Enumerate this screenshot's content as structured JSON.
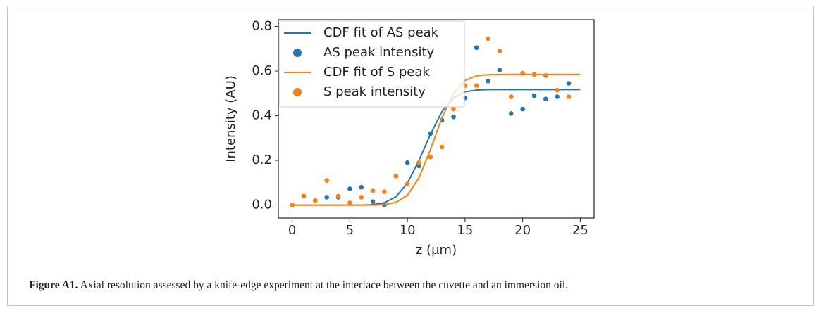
{
  "chart_data": {
    "type": "scatter",
    "xlabel": "z (μm)",
    "ylabel": "Intensity (AU)",
    "xlim": [
      -1.2,
      26.2
    ],
    "ylim": [
      -0.058,
      0.83
    ],
    "xticks": [
      0,
      5,
      10,
      15,
      20,
      25
    ],
    "yticks": [
      {
        "value": 0,
        "label": "0.0"
      },
      0.2,
      0.4,
      0.6,
      0.8
    ],
    "legend": "upper left",
    "series": [
      {
        "name": "CDF fit of AS peak",
        "mode": "line",
        "color": "#1f77b4",
        "x": [
          0,
          1,
          2,
          3,
          4,
          5,
          6,
          7,
          8,
          9,
          10,
          11,
          12,
          13,
          14,
          15,
          16,
          17,
          18,
          19,
          20,
          21,
          22,
          23,
          24,
          25
        ],
        "values": [
          0,
          0,
          0,
          0,
          0,
          0,
          0,
          0.002,
          0.01,
          0.037,
          0.098,
          0.2,
          0.317,
          0.419,
          0.48,
          0.507,
          0.515,
          0.517,
          0.517,
          0.517,
          0.517,
          0.517,
          0.517,
          0.517,
          0.517,
          0.517
        ]
      },
      {
        "name": "AS peak intensity",
        "mode": "markers",
        "color": "#1f77b4",
        "x": [
          0,
          1,
          2,
          3,
          4,
          5,
          6,
          7,
          8,
          9,
          10,
          11,
          12,
          13,
          14,
          15,
          16,
          17,
          18,
          19,
          20,
          21,
          22,
          23,
          24
        ],
        "values": [
          0,
          0.04,
          0.02,
          0.035,
          0.035,
          0.073,
          0.08,
          0.015,
          0,
          0.13,
          0.19,
          0.175,
          0.32,
          0.38,
          0.395,
          0.48,
          0.705,
          0.555,
          0.605,
          0.41,
          0.43,
          0.49,
          0.475,
          0.485,
          0.545
        ]
      },
      {
        "name": "CDF fit of S peak",
        "mode": "line",
        "color": "#ff7f0e",
        "x": [
          0,
          1,
          2,
          3,
          4,
          5,
          6,
          7,
          8,
          9,
          10,
          11,
          12,
          13,
          14,
          15,
          16,
          17,
          18,
          19,
          20,
          21,
          22,
          23,
          24,
          25
        ],
        "values": [
          0,
          0,
          0,
          0,
          0,
          0,
          0,
          0,
          0.002,
          0.012,
          0.044,
          0.122,
          0.249,
          0.392,
          0.5,
          0.558,
          0.579,
          0.584,
          0.585,
          0.585,
          0.585,
          0.585,
          0.585,
          0.585,
          0.585,
          0.585
        ]
      },
      {
        "name": "S peak intensity",
        "mode": "markers",
        "color": "#ff7f0e",
        "x": [
          0,
          1,
          2,
          3,
          4,
          5,
          6,
          7,
          8,
          9,
          10,
          11,
          12,
          13,
          14,
          15,
          16,
          17,
          18,
          19,
          20,
          21,
          22,
          23,
          24
        ],
        "values": [
          0,
          0.04,
          0.02,
          0.11,
          0.04,
          0.01,
          0.035,
          0.065,
          0.06,
          0.13,
          0.095,
          0.19,
          0.215,
          0.26,
          0.43,
          0.535,
          0.535,
          0.745,
          0.69,
          0.485,
          0.59,
          0.585,
          0.58,
          0.515,
          0.485
        ]
      }
    ]
  },
  "caption": {
    "label": "Figure A1.",
    "text": "Axial resolution assessed by a knife-edge experiment at the interface between the cuvette and an immersion oil."
  }
}
